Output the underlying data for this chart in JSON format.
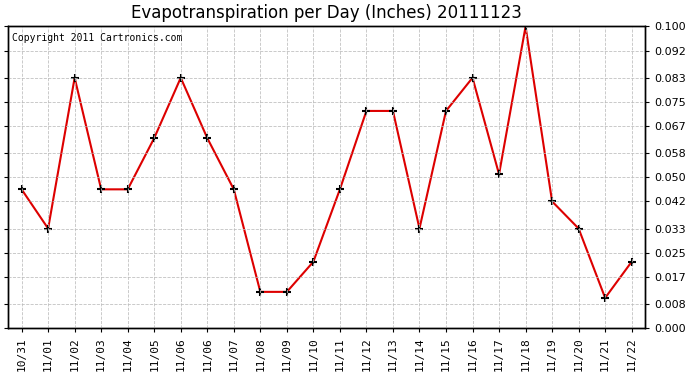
{
  "title": "Evapotranspiration per Day (Inches) 20111123",
  "copyright": "Copyright 2011 Cartronics.com",
  "x_labels": [
    "10/31",
    "11/01",
    "11/02",
    "11/03",
    "11/04",
    "11/05",
    "11/06",
    "11/06",
    "11/07",
    "11/08",
    "11/09",
    "11/10",
    "11/11",
    "11/12",
    "11/13",
    "11/14",
    "11/15",
    "11/16",
    "11/17",
    "11/18",
    "11/19",
    "11/20",
    "11/21",
    "11/22"
  ],
  "y_values": [
    0.046,
    0.033,
    0.083,
    0.046,
    0.046,
    0.063,
    0.083,
    0.063,
    0.046,
    0.012,
    0.012,
    0.022,
    0.046,
    0.072,
    0.072,
    0.033,
    0.072,
    0.083,
    0.051,
    0.1,
    0.042,
    0.033,
    0.01,
    0.022
  ],
  "line_color": "#dd0000",
  "marker_color": "#000000",
  "bg_color": "#ffffff",
  "plot_bg_color": "#ffffff",
  "grid_color": "#bbbbbb",
  "ylim": [
    0.0,
    0.1
  ],
  "yticks": [
    0.0,
    0.008,
    0.017,
    0.025,
    0.033,
    0.042,
    0.05,
    0.058,
    0.067,
    0.075,
    0.083,
    0.092,
    0.1
  ],
  "title_fontsize": 12,
  "copyright_fontsize": 7,
  "tick_fontsize": 8
}
